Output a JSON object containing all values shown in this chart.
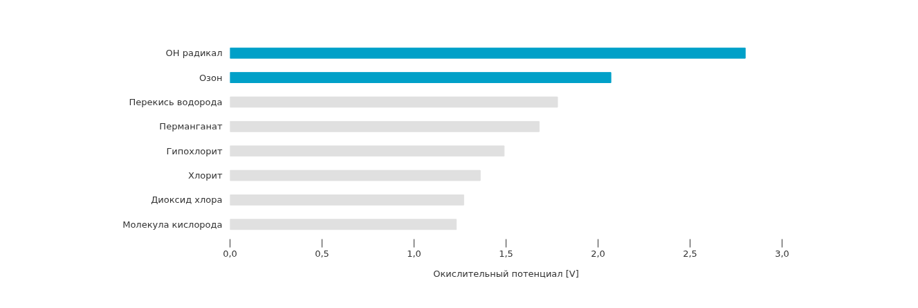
{
  "chart_data": {
    "type": "bar",
    "orientation": "horizontal",
    "xlabel": "Окислительный потенциал [V]",
    "categories": [
      "ОН радикал",
      "Озон",
      "Перекись водорода",
      "Перманганат",
      "Гипохлорит",
      "Хлорит",
      "Диоксид хлора",
      "Молекула кислорода"
    ],
    "values": [
      2.8,
      2.07,
      1.78,
      1.68,
      1.49,
      1.36,
      1.27,
      1.23
    ],
    "colors": [
      "#00a0c8",
      "#00a0c8",
      "#e0e0e0",
      "#e0e0e0",
      "#e0e0e0",
      "#e0e0e0",
      "#e0e0e0",
      "#e0e0e0"
    ],
    "xlim": [
      0,
      3.0
    ],
    "xticks": [
      {
        "value": 0,
        "label": "0,0"
      },
      {
        "value": 0.5,
        "label": "0,5"
      },
      {
        "value": 1.0,
        "label": "1,0"
      },
      {
        "value": 1.5,
        "label": "1,5"
      },
      {
        "value": 2.0,
        "label": "2,0"
      },
      {
        "value": 2.5,
        "label": "2,5"
      },
      {
        "value": 3.0,
        "label": "3,0"
      }
    ],
    "grid": false
  }
}
